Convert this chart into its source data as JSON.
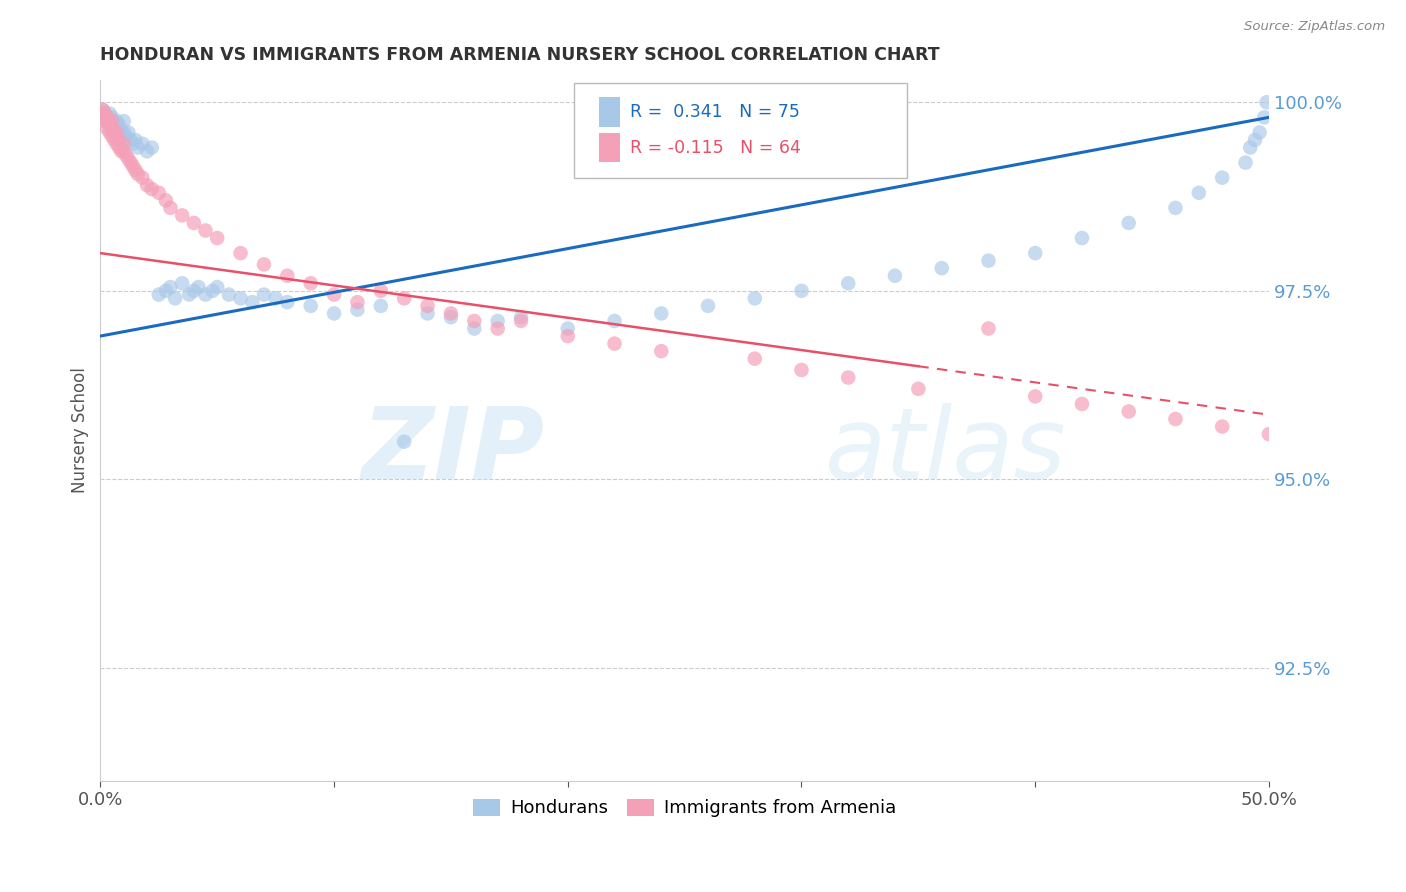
{
  "title": "HONDURAN VS IMMIGRANTS FROM ARMENIA NURSERY SCHOOL CORRELATION CHART",
  "source": "Source: ZipAtlas.com",
  "ylabel": "Nursery School",
  "xlim": [
    0.0,
    0.5
  ],
  "ylim": [
    0.91,
    1.003
  ],
  "yticks": [
    0.925,
    0.95,
    0.975,
    1.0
  ],
  "ytick_labels": [
    "92.5%",
    "95.0%",
    "97.5%",
    "100.0%"
  ],
  "xticks": [
    0.0,
    0.1,
    0.2,
    0.3,
    0.4,
    0.5
  ],
  "xtick_labels": [
    "0.0%",
    "",
    "",
    "",
    "",
    "50.0%"
  ],
  "blue_color": "#a8c8e8",
  "pink_color": "#f4a0b8",
  "trendline_blue": "#1a6bbf",
  "trendline_pink": "#e8506a",
  "title_color": "#333333",
  "axis_label_color": "#555555",
  "tick_color": "#5b9bd5",
  "grid_color": "#cccccc",
  "watermark_zip": "ZIP",
  "watermark_atlas": "atlas",
  "blue_scatter_x": [
    0.001,
    0.002,
    0.003,
    0.003,
    0.004,
    0.004,
    0.005,
    0.005,
    0.006,
    0.006,
    0.007,
    0.007,
    0.008,
    0.008,
    0.009,
    0.01,
    0.01,
    0.011,
    0.012,
    0.013,
    0.014,
    0.015,
    0.016,
    0.018,
    0.02,
    0.022,
    0.025,
    0.028,
    0.03,
    0.032,
    0.035,
    0.038,
    0.04,
    0.042,
    0.045,
    0.048,
    0.05,
    0.055,
    0.06,
    0.065,
    0.07,
    0.075,
    0.08,
    0.09,
    0.1,
    0.11,
    0.12,
    0.13,
    0.14,
    0.15,
    0.16,
    0.17,
    0.18,
    0.2,
    0.22,
    0.24,
    0.26,
    0.28,
    0.3,
    0.32,
    0.34,
    0.36,
    0.38,
    0.4,
    0.42,
    0.44,
    0.46,
    0.47,
    0.48,
    0.49,
    0.492,
    0.494,
    0.496,
    0.498,
    0.499
  ],
  "blue_scatter_y": [
    0.999,
    0.9985,
    0.998,
    0.9975,
    0.9985,
    0.997,
    0.998,
    0.9975,
    0.997,
    0.9965,
    0.9975,
    0.996,
    0.997,
    0.9965,
    0.996,
    0.9975,
    0.996,
    0.9955,
    0.996,
    0.995,
    0.9945,
    0.995,
    0.994,
    0.9945,
    0.9935,
    0.994,
    0.9745,
    0.975,
    0.9755,
    0.974,
    0.976,
    0.9745,
    0.975,
    0.9755,
    0.9745,
    0.975,
    0.9755,
    0.9745,
    0.974,
    0.9735,
    0.9745,
    0.974,
    0.9735,
    0.973,
    0.972,
    0.9725,
    0.973,
    0.955,
    0.972,
    0.9715,
    0.97,
    0.971,
    0.9715,
    0.97,
    0.971,
    0.972,
    0.973,
    0.974,
    0.975,
    0.976,
    0.977,
    0.978,
    0.979,
    0.98,
    0.982,
    0.984,
    0.986,
    0.988,
    0.99,
    0.992,
    0.994,
    0.995,
    0.996,
    0.998,
    1.0
  ],
  "pink_scatter_x": [
    0.001,
    0.001,
    0.002,
    0.002,
    0.003,
    0.003,
    0.003,
    0.004,
    0.004,
    0.005,
    0.005,
    0.005,
    0.006,
    0.006,
    0.007,
    0.007,
    0.008,
    0.008,
    0.009,
    0.01,
    0.01,
    0.011,
    0.012,
    0.013,
    0.014,
    0.015,
    0.016,
    0.018,
    0.02,
    0.022,
    0.025,
    0.028,
    0.03,
    0.035,
    0.04,
    0.045,
    0.05,
    0.06,
    0.07,
    0.08,
    0.09,
    0.1,
    0.11,
    0.12,
    0.13,
    0.14,
    0.15,
    0.16,
    0.17,
    0.18,
    0.2,
    0.22,
    0.24,
    0.28,
    0.3,
    0.32,
    0.35,
    0.38,
    0.4,
    0.42,
    0.44,
    0.46,
    0.48,
    0.5
  ],
  "pink_scatter_y": [
    0.999,
    0.9985,
    0.9985,
    0.9975,
    0.998,
    0.9975,
    0.9965,
    0.997,
    0.996,
    0.9975,
    0.9965,
    0.9955,
    0.996,
    0.995,
    0.996,
    0.9945,
    0.995,
    0.994,
    0.9935,
    0.9945,
    0.9935,
    0.993,
    0.9925,
    0.992,
    0.9915,
    0.991,
    0.9905,
    0.99,
    0.989,
    0.9885,
    0.988,
    0.987,
    0.986,
    0.985,
    0.984,
    0.983,
    0.982,
    0.98,
    0.9785,
    0.977,
    0.976,
    0.9745,
    0.9735,
    0.975,
    0.974,
    0.973,
    0.972,
    0.971,
    0.97,
    0.971,
    0.969,
    0.968,
    0.967,
    0.966,
    0.9645,
    0.9635,
    0.962,
    0.97,
    0.961,
    0.96,
    0.959,
    0.958,
    0.957,
    0.956
  ]
}
